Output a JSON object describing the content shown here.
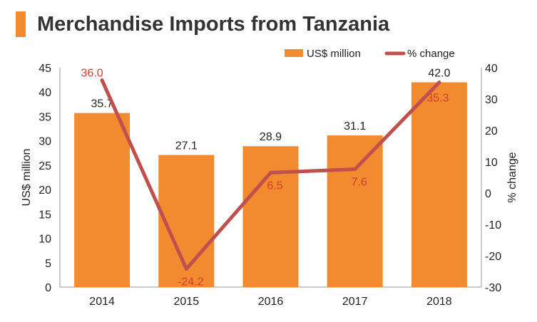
{
  "title": "Merchandise Imports from Tanzania",
  "colors": {
    "accent": "#f28b30",
    "bar": "#f28b30",
    "line": "#c0504d",
    "line_label": "#d43f2a",
    "text": "#222222",
    "title": "#333333"
  },
  "chart_data": {
    "type": "bar",
    "categories": [
      "2014",
      "2015",
      "2016",
      "2017",
      "2018"
    ],
    "series": [
      {
        "name": "US$ million",
        "type": "bar",
        "axis": "left",
        "values": [
          35.7,
          27.1,
          28.9,
          31.1,
          42.0
        ],
        "labels": [
          "35.7",
          "27.1",
          "28.9",
          "31.1",
          "42.0"
        ]
      },
      {
        "name": "% change",
        "type": "line",
        "axis": "right",
        "values": [
          36.0,
          -24.2,
          6.5,
          7.6,
          35.3
        ],
        "labels": [
          "36.0",
          "-24.2",
          "6.5",
          "7.6",
          "35.3"
        ]
      }
    ],
    "ylabel": "US$ million",
    "ylabel_right": "% change",
    "ylim": [
      0,
      45
    ],
    "ylim_right": [
      -30,
      40
    ],
    "yticks": [
      "0",
      "5",
      "10",
      "15",
      "20",
      "25",
      "30",
      "35",
      "40",
      "45"
    ],
    "yticks_right": [
      "-30",
      "-20",
      "-10",
      "0",
      "10",
      "20",
      "30",
      "40"
    ],
    "grid": false,
    "legend_position": "top-right"
  }
}
